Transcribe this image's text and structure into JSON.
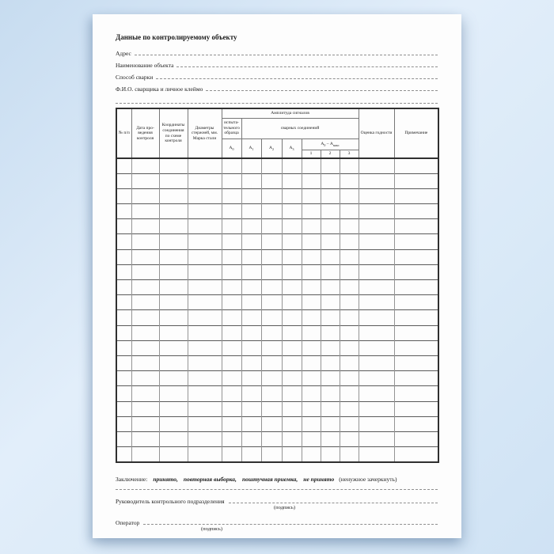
{
  "colors": {
    "paper": "#fdfdfd",
    "backdrop": "#d7e7f6"
  },
  "document": {
    "title": "Данные по контролируемому объекту",
    "fields": [
      {
        "label": "Адрес"
      },
      {
        "label": "Наименование объекта"
      },
      {
        "label": "Способ сварки"
      },
      {
        "label": "Ф.И.О. сварщика и личное клеймо"
      }
    ]
  },
  "table": {
    "header": {
      "col_num": "№ п/п",
      "col_date": "Дата про- ведения контроля",
      "col_coords": "Координаты соединения по схеме контроля",
      "col_diam": "Диаметры стержней, мм. Марка стали",
      "amplitude_title": "Амплитуда сигналов",
      "specimen": "испыта- тельного образца",
      "welded": "сварных соединений",
      "a0": {
        "base": "А",
        "sub": "0"
      },
      "a1": {
        "base": "А",
        "sub": "1"
      },
      "a2": {
        "base": "А",
        "sub": "2"
      },
      "a3": {
        "base": "А",
        "sub": "3"
      },
      "diff": {
        "base1": "А",
        "sub1": "0",
        "mid": " – А",
        "sub2": "макс"
      },
      "diff_subcols": [
        "1",
        "2",
        "3"
      ],
      "col_grade": "Оценка годности",
      "col_note": "Примечание"
    },
    "body": {
      "row_count": 20,
      "col_count": 13
    }
  },
  "conclusion": {
    "label": "Заключение:",
    "options": [
      "принято,",
      "повторная выборка,",
      "поштучная приемка,",
      "не принято"
    ],
    "note": "(ненужное зачеркнуть)"
  },
  "signatures": {
    "head_label": "Руководитель контрольного подразделения",
    "head_sign_caption": "(подпись)",
    "operator_label": "Оператор",
    "operator_sign_caption": "(подпись)"
  }
}
